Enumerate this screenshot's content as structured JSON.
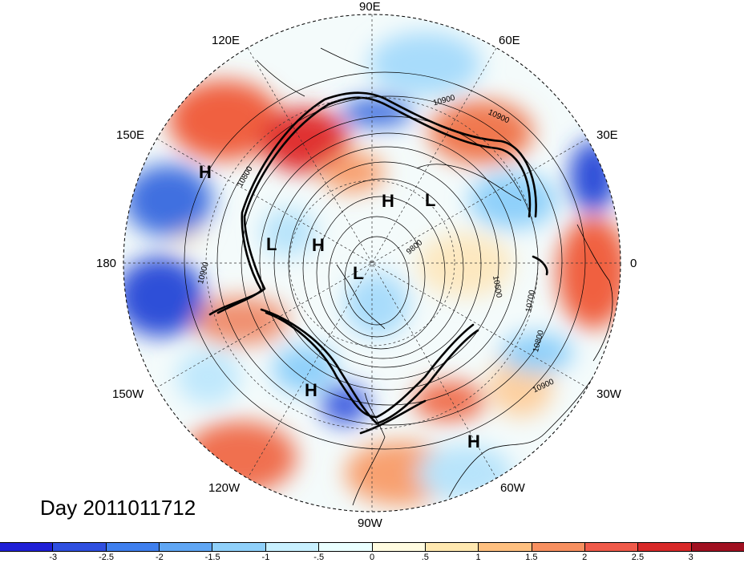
{
  "map": {
    "longitude_labels": [
      {
        "id": "lon-90e",
        "text": "90E"
      },
      {
        "id": "lon-120e",
        "text": "120E"
      },
      {
        "id": "lon-60e",
        "text": "60E"
      },
      {
        "id": "lon-150e",
        "text": "150E"
      },
      {
        "id": "lon-30e",
        "text": "30E"
      },
      {
        "id": "lon-180",
        "text": "180"
      },
      {
        "id": "lon-0",
        "text": "0"
      },
      {
        "id": "lon-150w",
        "text": "150W"
      },
      {
        "id": "lon-30w",
        "text": "30W"
      },
      {
        "id": "lon-120w",
        "text": "120W"
      },
      {
        "id": "lon-60w",
        "text": "60W"
      },
      {
        "id": "lon-90w",
        "text": "90W"
      }
    ],
    "pressure_centers": [
      {
        "id": "h-1",
        "text": "H"
      },
      {
        "id": "h-2",
        "text": "H"
      },
      {
        "id": "l-1",
        "text": "L"
      },
      {
        "id": "l-2",
        "text": "L"
      },
      {
        "id": "h-3",
        "text": "H"
      },
      {
        "id": "l-3",
        "text": "L"
      },
      {
        "id": "h-4",
        "text": "H"
      },
      {
        "id": "h-5",
        "text": "H"
      }
    ],
    "contour_labels": [
      {
        "id": "c-1",
        "text": "10900"
      },
      {
        "id": "c-2",
        "text": "10900"
      },
      {
        "id": "c-3",
        "text": "10800"
      },
      {
        "id": "c-4",
        "text": "10900"
      },
      {
        "id": "c-5",
        "text": "10500"
      },
      {
        "id": "c-6",
        "text": "10700"
      },
      {
        "id": "c-7",
        "text": "10800"
      },
      {
        "id": "c-8",
        "text": "10900"
      },
      {
        "id": "c-9",
        "text": "9800"
      }
    ],
    "day_label": "Day 2011011712"
  },
  "colorbar": {
    "colors": [
      "#1f1fd6",
      "#2f4fe0",
      "#3f7fee",
      "#5fa6f4",
      "#8fd0fa",
      "#c8f0ff",
      "#eaffff",
      "#fffbe0",
      "#ffe8b0",
      "#ffc080",
      "#f89060",
      "#f05a4a",
      "#d82828",
      "#a01020"
    ],
    "ticks": [
      "-3",
      "-2.5",
      "-2",
      "-1.5",
      "-1",
      "-.5",
      "0",
      ".5",
      "1",
      "1.5",
      "2",
      "2.5",
      "3"
    ]
  }
}
